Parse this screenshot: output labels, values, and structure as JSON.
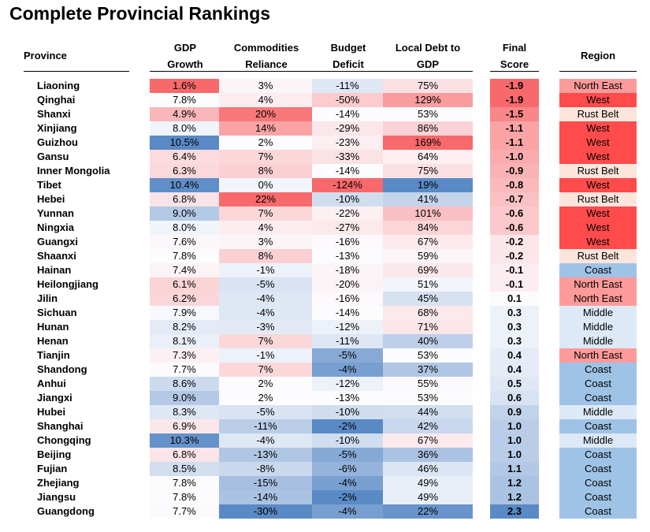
{
  "title": "Complete Provincial Rankings",
  "headers": {
    "province": "Province",
    "gdp_l1": "GDP",
    "gdp_l2": "Growth",
    "comm_l1": "Commodities",
    "comm_l2": "Reliance",
    "budget_l1": "Budget",
    "budget_l2": "Deficit",
    "debt_l1": "Local Debt to",
    "debt_l2": "GDP",
    "score_l1": "Final",
    "score_l2": "Score",
    "region": "Region"
  },
  "colors": {
    "red": "#f8696b",
    "blue": "#5a8ac6",
    "white": "#fcfcff",
    "region_west": "#ff4b4b",
    "region_northeast": "#ff9a9a",
    "region_rustbelt": "#fde5dc",
    "region_coast": "#9fc3e7",
    "region_middle": "#dde9f7"
  },
  "chart_data": {
    "type": "table",
    "columns": [
      "Province",
      "GDP Growth",
      "Commodities Reliance",
      "Budget Deficit",
      "Local Debt to GDP",
      "Final Score",
      "Region"
    ],
    "rows": [
      {
        "province": "Liaoning",
        "gdp": "1.6%",
        "commodities": "3%",
        "deficit": "-11%",
        "debt": "75%",
        "score": "-1.9",
        "region": "North East"
      },
      {
        "province": "Qinghai",
        "gdp": "7.8%",
        "commodities": "4%",
        "deficit": "-50%",
        "debt": "129%",
        "score": "-1.9",
        "region": "West"
      },
      {
        "province": "Shanxi",
        "gdp": "4.9%",
        "commodities": "20%",
        "deficit": "-14%",
        "debt": "53%",
        "score": "-1.5",
        "region": "Rust Belt"
      },
      {
        "province": "Xinjiang",
        "gdp": "8.0%",
        "commodities": "14%",
        "deficit": "-29%",
        "debt": "86%",
        "score": "-1.1",
        "region": "West"
      },
      {
        "province": "Guizhou",
        "gdp": "10.5%",
        "commodities": "2%",
        "deficit": "-23%",
        "debt": "169%",
        "score": "-1.1",
        "region": "West"
      },
      {
        "province": "Gansu",
        "gdp": "6.4%",
        "commodities": "7%",
        "deficit": "-33%",
        "debt": "64%",
        "score": "-1.0",
        "region": "West"
      },
      {
        "province": "Inner Mongolia",
        "gdp": "6.3%",
        "commodities": "8%",
        "deficit": "-14%",
        "debt": "75%",
        "score": "-0.9",
        "region": "Rust Belt"
      },
      {
        "province": "Tibet",
        "gdp": "10.4%",
        "commodities": "0%",
        "deficit": "-124%",
        "debt": "19%",
        "score": "-0.8",
        "region": "West"
      },
      {
        "province": "Hebei",
        "gdp": "6.8%",
        "commodities": "22%",
        "deficit": "-10%",
        "debt": "41%",
        "score": "-0.7",
        "region": "Rust Belt"
      },
      {
        "province": "Yunnan",
        "gdp": "9.0%",
        "commodities": "7%",
        "deficit": "-22%",
        "debt": "101%",
        "score": "-0.6",
        "region": "West"
      },
      {
        "province": "Ningxia",
        "gdp": "8.0%",
        "commodities": "4%",
        "deficit": "-27%",
        "debt": "84%",
        "score": "-0.6",
        "region": "West"
      },
      {
        "province": "Guangxi",
        "gdp": "7.6%",
        "commodities": "3%",
        "deficit": "-16%",
        "debt": "67%",
        "score": "-0.2",
        "region": "West"
      },
      {
        "province": "Shaanxi",
        "gdp": "7.8%",
        "commodities": "8%",
        "deficit": "-13%",
        "debt": "59%",
        "score": "-0.2",
        "region": "Rust Belt"
      },
      {
        "province": "Hainan",
        "gdp": "7.4%",
        "commodities": "-1%",
        "deficit": "-18%",
        "debt": "69%",
        "score": "-0.1",
        "region": "Coast"
      },
      {
        "province": "Heilongjiang",
        "gdp": "6.1%",
        "commodities": "-5%",
        "deficit": "-20%",
        "debt": "51%",
        "score": "-0.1",
        "region": "North East"
      },
      {
        "province": "Jilin",
        "gdp": "6.2%",
        "commodities": "-4%",
        "deficit": "-16%",
        "debt": "45%",
        "score": "0.1",
        "region": "North East"
      },
      {
        "province": "Sichuan",
        "gdp": "7.9%",
        "commodities": "-4%",
        "deficit": "-14%",
        "debt": "68%",
        "score": "0.3",
        "region": "Middle"
      },
      {
        "province": "Hunan",
        "gdp": "8.2%",
        "commodities": "-3%",
        "deficit": "-12%",
        "debt": "71%",
        "score": "0.3",
        "region": "Middle"
      },
      {
        "province": "Henan",
        "gdp": "8.1%",
        "commodities": "7%",
        "deficit": "-11%",
        "debt": "40%",
        "score": "0.3",
        "region": "Middle"
      },
      {
        "province": "Tianjin",
        "gdp": "7.3%",
        "commodities": "-1%",
        "deficit": "-5%",
        "debt": "53%",
        "score": "0.4",
        "region": "North East"
      },
      {
        "province": "Shandong",
        "gdp": "7.7%",
        "commodities": "7%",
        "deficit": "-4%",
        "debt": "37%",
        "score": "0.4",
        "region": "Coast"
      },
      {
        "province": "Anhui",
        "gdp": "8.6%",
        "commodities": "2%",
        "deficit": "-12%",
        "debt": "55%",
        "score": "0.5",
        "region": "Coast"
      },
      {
        "province": "Jiangxi",
        "gdp": "9.0%",
        "commodities": "2%",
        "deficit": "-13%",
        "debt": "53%",
        "score": "0.6",
        "region": "Coast"
      },
      {
        "province": "Hubei",
        "gdp": "8.3%",
        "commodities": "-5%",
        "deficit": "-10%",
        "debt": "44%",
        "score": "0.9",
        "region": "Middle"
      },
      {
        "province": "Shanghai",
        "gdp": "6.9%",
        "commodities": "-11%",
        "deficit": "-2%",
        "debt": "42%",
        "score": "1.0",
        "region": "Coast"
      },
      {
        "province": "Chongqing",
        "gdp": "10.3%",
        "commodities": "-4%",
        "deficit": "-10%",
        "debt": "67%",
        "score": "1.0",
        "region": "Middle"
      },
      {
        "province": "Beijing",
        "gdp": "6.8%",
        "commodities": "-13%",
        "deficit": "-5%",
        "debt": "36%",
        "score": "1.0",
        "region": "Coast"
      },
      {
        "province": "Fujian",
        "gdp": "8.5%",
        "commodities": "-8%",
        "deficit": "-6%",
        "debt": "46%",
        "score": "1.1",
        "region": "Coast"
      },
      {
        "province": "Zhejiang",
        "gdp": "7.8%",
        "commodities": "-15%",
        "deficit": "-4%",
        "debt": "49%",
        "score": "1.2",
        "region": "Coast"
      },
      {
        "province": "Jiangsu",
        "gdp": "7.8%",
        "commodities": "-14%",
        "deficit": "-2%",
        "debt": "49%",
        "score": "1.2",
        "region": "Coast"
      },
      {
        "province": "Guangdong",
        "gdp": "7.7%",
        "commodities": "-30%",
        "deficit": "-4%",
        "debt": "22%",
        "score": "2.3",
        "region": "Coast"
      }
    ]
  }
}
